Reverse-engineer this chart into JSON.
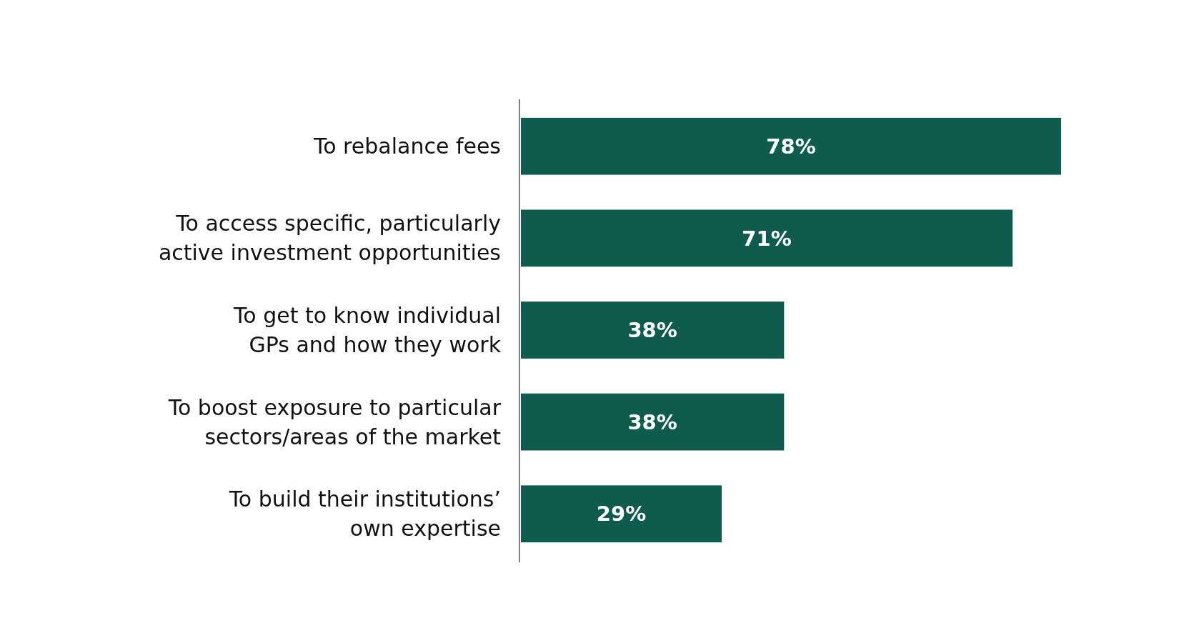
{
  "chart_data": {
    "type": "bar",
    "orientation": "horizontal",
    "categories": [
      "To rebalance fees",
      "To access specific, particularly\nactive investment opportunities",
      "To get to know individual\nGPs and how they work",
      "To boost exposure to particular\nsectors/areas of the market",
      "To build their institutions’\nown expertise"
    ],
    "values": [
      78,
      71,
      38,
      38,
      29
    ],
    "value_labels": [
      "78%",
      "71%",
      "38%",
      "38%",
      "29%"
    ],
    "color": "#0f5c4f"
  }
}
